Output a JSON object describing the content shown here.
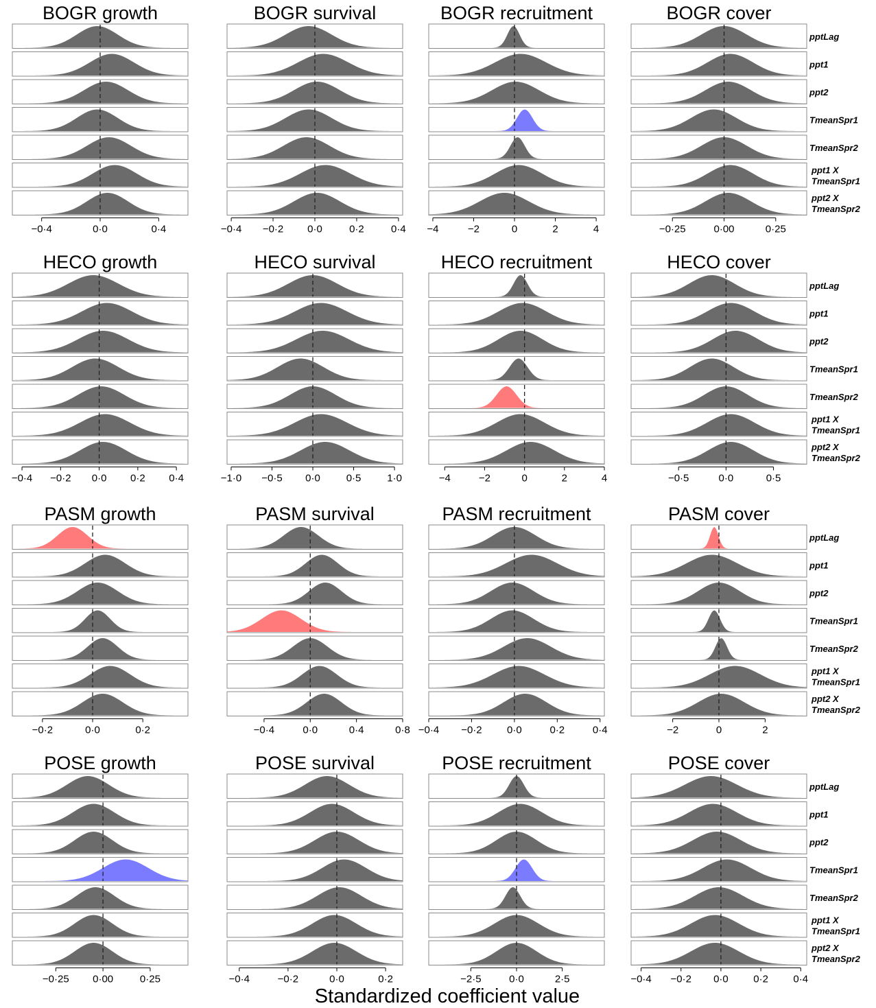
{
  "figure": {
    "xlabel": "Standardized coefficient value",
    "parameters": [
      [
        "pptLag"
      ],
      [
        "ppt1"
      ],
      [
        "ppt2"
      ],
      [
        "TmeanSpr1"
      ],
      [
        "TmeanSpr2"
      ],
      [
        "ppt1 X",
        "TmeanSpr1"
      ],
      [
        "ppt2 X",
        "TmeanSpr2"
      ]
    ],
    "colors": {
      "neutral": "#6b6b6b",
      "negative": "#ff7b7b",
      "positive": "#7b7bff"
    }
  },
  "chart_data": [
    {
      "type": "area",
      "title": "BOGR growth",
      "xlim": [
        -0.6,
        0.6
      ],
      "ticks": [
        -0.4,
        0,
        0.4
      ],
      "tick_labels": [
        "−0·4",
        "0·0",
        "0·4"
      ],
      "series": [
        {
          "mean": -0.02,
          "sd": 0.14,
          "color": "neutral"
        },
        {
          "mean": 0.08,
          "sd": 0.15,
          "color": "neutral"
        },
        {
          "mean": 0.04,
          "sd": 0.15,
          "color": "neutral"
        },
        {
          "mean": -0.02,
          "sd": 0.14,
          "color": "neutral"
        },
        {
          "mean": 0.06,
          "sd": 0.15,
          "color": "neutral"
        },
        {
          "mean": 0.1,
          "sd": 0.15,
          "color": "neutral"
        },
        {
          "mean": 0.05,
          "sd": 0.14,
          "color": "neutral"
        }
      ]
    },
    {
      "type": "area",
      "title": "BOGR survival",
      "xlim": [
        -0.42,
        0.42
      ],
      "ticks": [
        -0.4,
        -0.2,
        0,
        0.2,
        0.4
      ],
      "tick_labels": [
        "−0·4",
        "−0·2",
        "0·0",
        "0·2",
        "0·4"
      ],
      "series": [
        {
          "mean": -0.03,
          "sd": 0.11,
          "color": "neutral"
        },
        {
          "mean": 0.04,
          "sd": 0.12,
          "color": "neutral"
        },
        {
          "mean": 0.01,
          "sd": 0.11,
          "color": "neutral"
        },
        {
          "mean": -0.03,
          "sd": 0.11,
          "color": "neutral"
        },
        {
          "mean": -0.04,
          "sd": 0.11,
          "color": "neutral"
        },
        {
          "mean": 0.05,
          "sd": 0.12,
          "color": "neutral"
        },
        {
          "mean": 0.01,
          "sd": 0.11,
          "color": "neutral"
        }
      ]
    },
    {
      "type": "area",
      "title": "BOGR recruitment",
      "xlim": [
        -4.2,
        4.4
      ],
      "ticks": [
        -4,
        -2,
        0,
        2,
        4
      ],
      "tick_labels": [
        "−4",
        "−2",
        "0",
        "2",
        "4"
      ],
      "series": [
        {
          "mean": -0.05,
          "sd": 0.3,
          "color": "neutral"
        },
        {
          "mean": 0.3,
          "sd": 1.25,
          "color": "neutral"
        },
        {
          "mean": 0.05,
          "sd": 1.15,
          "color": "neutral"
        },
        {
          "mean": 0.5,
          "sd": 0.38,
          "color": "positive"
        },
        {
          "mean": 0.15,
          "sd": 0.35,
          "color": "neutral"
        },
        {
          "mean": 0.2,
          "sd": 1.15,
          "color": "neutral"
        },
        {
          "mean": -0.5,
          "sd": 1.2,
          "color": "neutral"
        }
      ]
    },
    {
      "type": "area",
      "title": "BOGR cover",
      "xlim": [
        -0.45,
        0.4
      ],
      "ticks": [
        -0.25,
        0,
        0.25
      ],
      "tick_labels": [
        "−0·25",
        "0·00",
        "0·25"
      ],
      "series": [
        {
          "mean": 0.0,
          "sd": 0.11,
          "color": "neutral"
        },
        {
          "mean": 0.03,
          "sd": 0.11,
          "color": "neutral"
        },
        {
          "mean": 0.02,
          "sd": 0.11,
          "color": "neutral"
        },
        {
          "mean": -0.05,
          "sd": 0.11,
          "color": "neutral"
        },
        {
          "mean": 0.0,
          "sd": 0.11,
          "color": "neutral"
        },
        {
          "mean": 0.03,
          "sd": 0.11,
          "color": "neutral"
        },
        {
          "mean": 0.02,
          "sd": 0.11,
          "color": "neutral"
        }
      ]
    },
    {
      "type": "area",
      "title": "HECO growth",
      "xlim": [
        -0.45,
        0.46
      ],
      "ticks": [
        -0.4,
        -0.2,
        0,
        0.2,
        0.4
      ],
      "tick_labels": [
        "−0·4",
        "−0·2",
        "0·0",
        "0·2",
        "0·4"
      ],
      "series": [
        {
          "mean": -0.03,
          "sd": 0.13,
          "color": "neutral"
        },
        {
          "mean": 0.04,
          "sd": 0.13,
          "color": "neutral"
        },
        {
          "mean": 0.02,
          "sd": 0.13,
          "color": "neutral"
        },
        {
          "mean": -0.02,
          "sd": 0.12,
          "color": "neutral"
        },
        {
          "mean": 0.01,
          "sd": 0.12,
          "color": "neutral"
        },
        {
          "mean": 0.03,
          "sd": 0.13,
          "color": "neutral"
        },
        {
          "mean": 0.02,
          "sd": 0.12,
          "color": "neutral"
        }
      ]
    },
    {
      "type": "area",
      "title": "HECO survival",
      "xlim": [
        -1.05,
        1.1
      ],
      "ticks": [
        -1,
        -0.5,
        0,
        0.5,
        1
      ],
      "tick_labels": [
        "−1·0",
        "−0·5",
        "0·0",
        "0·5",
        "1·0"
      ],
      "series": [
        {
          "mean": 0.0,
          "sd": 0.3,
          "color": "neutral"
        },
        {
          "mean": 0.1,
          "sd": 0.32,
          "color": "neutral"
        },
        {
          "mean": 0.12,
          "sd": 0.32,
          "color": "neutral"
        },
        {
          "mean": -0.15,
          "sd": 0.28,
          "color": "neutral"
        },
        {
          "mean": 0.0,
          "sd": 0.28,
          "color": "neutral"
        },
        {
          "mean": 0.1,
          "sd": 0.32,
          "color": "neutral"
        },
        {
          "mean": 0.15,
          "sd": 0.3,
          "color": "neutral"
        }
      ]
    },
    {
      "type": "area",
      "title": "HECO recruitment",
      "xlim": [
        -4.8,
        4.0
      ],
      "ticks": [
        -4,
        -2,
        0,
        2,
        4
      ],
      "tick_labels": [
        "−4",
        "−2",
        "0",
        "2",
        "4"
      ],
      "series": [
        {
          "mean": -0.2,
          "sd": 0.35,
          "color": "neutral"
        },
        {
          "mean": -0.1,
          "sd": 1.2,
          "color": "neutral"
        },
        {
          "mean": -0.2,
          "sd": 1.1,
          "color": "neutral"
        },
        {
          "mean": -0.3,
          "sd": 0.45,
          "color": "neutral"
        },
        {
          "mean": -0.9,
          "sd": 0.5,
          "color": "negative"
        },
        {
          "mean": -0.2,
          "sd": 1.2,
          "color": "neutral"
        },
        {
          "mean": 0.3,
          "sd": 1.2,
          "color": "neutral"
        }
      ]
    },
    {
      "type": "area",
      "title": "HECO cover",
      "xlim": [
        -1.0,
        0.85
      ],
      "ticks": [
        -0.5,
        0,
        0.5
      ],
      "tick_labels": [
        "−0·5",
        "0·0",
        "0·5"
      ],
      "series": [
        {
          "mean": -0.15,
          "sd": 0.24,
          "color": "neutral"
        },
        {
          "mean": 0.05,
          "sd": 0.25,
          "color": "neutral"
        },
        {
          "mean": 0.1,
          "sd": 0.24,
          "color": "neutral"
        },
        {
          "mean": -0.15,
          "sd": 0.23,
          "color": "neutral"
        },
        {
          "mean": 0.0,
          "sd": 0.23,
          "color": "neutral"
        },
        {
          "mean": 0.05,
          "sd": 0.25,
          "color": "neutral"
        },
        {
          "mean": 0.05,
          "sd": 0.24,
          "color": "neutral"
        }
      ]
    },
    {
      "type": "area",
      "title": "PASM growth",
      "xlim": [
        -0.32,
        0.38
      ],
      "ticks": [
        -0.2,
        0,
        0.2
      ],
      "tick_labels": [
        "−0·2",
        "0·0",
        "0·2"
      ],
      "series": [
        {
          "mean": -0.08,
          "sd": 0.06,
          "color": "negative"
        },
        {
          "mean": 0.05,
          "sd": 0.08,
          "color": "neutral"
        },
        {
          "mean": 0.02,
          "sd": 0.08,
          "color": "neutral"
        },
        {
          "mean": 0.02,
          "sd": 0.05,
          "color": "neutral"
        },
        {
          "mean": 0.04,
          "sd": 0.06,
          "color": "neutral"
        },
        {
          "mean": 0.07,
          "sd": 0.08,
          "color": "neutral"
        },
        {
          "mean": 0.04,
          "sd": 0.08,
          "color": "neutral"
        }
      ]
    },
    {
      "type": "area",
      "title": "PASM survival",
      "xlim": [
        -0.72,
        0.8
      ],
      "ticks": [
        -0.4,
        0,
        0.4,
        0.8
      ],
      "tick_labels": [
        "−0·4",
        "0·0",
        "0·4",
        "0·8"
      ],
      "series": [
        {
          "mean": -0.08,
          "sd": 0.15,
          "color": "neutral"
        },
        {
          "mean": 0.1,
          "sd": 0.14,
          "color": "neutral"
        },
        {
          "mean": 0.13,
          "sd": 0.14,
          "color": "neutral"
        },
        {
          "mean": -0.25,
          "sd": 0.17,
          "color": "negative"
        },
        {
          "mean": 0.0,
          "sd": 0.15,
          "color": "neutral"
        },
        {
          "mean": 0.08,
          "sd": 0.15,
          "color": "neutral"
        },
        {
          "mean": 0.12,
          "sd": 0.15,
          "color": "neutral"
        }
      ]
    },
    {
      "type": "area",
      "title": "PASM recruitment",
      "xlim": [
        -0.4,
        0.42
      ],
      "ticks": [
        -0.4,
        -0.2,
        0,
        0.2,
        0.4
      ],
      "tick_labels": [
        "−0·4",
        "−0·2",
        "0·0",
        "0·2",
        "0·4"
      ],
      "series": [
        {
          "mean": 0.0,
          "sd": 0.1,
          "color": "neutral"
        },
        {
          "mean": 0.08,
          "sd": 0.12,
          "color": "neutral"
        },
        {
          "mean": -0.01,
          "sd": 0.1,
          "color": "neutral"
        },
        {
          "mean": -0.01,
          "sd": 0.1,
          "color": "neutral"
        },
        {
          "mean": 0.06,
          "sd": 0.11,
          "color": "neutral"
        },
        {
          "mean": 0.02,
          "sd": 0.12,
          "color": "neutral"
        },
        {
          "mean": 0.05,
          "sd": 0.1,
          "color": "neutral"
        }
      ]
    },
    {
      "type": "area",
      "title": "PASM cover",
      "xlim": [
        -3.8,
        3.8
      ],
      "ticks": [
        -2,
        0,
        2
      ],
      "tick_labels": [
        "−2",
        "0",
        "2"
      ],
      "series": [
        {
          "mean": -0.2,
          "sd": 0.18,
          "color": "negative"
        },
        {
          "mean": -0.3,
          "sd": 1.1,
          "color": "neutral"
        },
        {
          "mean": 0.0,
          "sd": 0.9,
          "color": "neutral"
        },
        {
          "mean": -0.2,
          "sd": 0.25,
          "color": "neutral"
        },
        {
          "mean": 0.1,
          "sd": 0.25,
          "color": "neutral"
        },
        {
          "mean": 0.7,
          "sd": 1.1,
          "color": "neutral"
        },
        {
          "mean": 0.1,
          "sd": 1.0,
          "color": "neutral"
        }
      ]
    },
    {
      "type": "area",
      "title": "POSE growth",
      "xlim": [
        -0.48,
        0.45
      ],
      "ticks": [
        -0.25,
        0,
        0.25
      ],
      "tick_labels": [
        "−0·25",
        "0·00",
        "0·25"
      ],
      "series": [
        {
          "mean": -0.08,
          "sd": 0.11,
          "color": "neutral"
        },
        {
          "mean": -0.05,
          "sd": 0.11,
          "color": "neutral"
        },
        {
          "mean": -0.05,
          "sd": 0.1,
          "color": "neutral"
        },
        {
          "mean": 0.12,
          "sd": 0.12,
          "color": "positive"
        },
        {
          "mean": -0.04,
          "sd": 0.1,
          "color": "neutral"
        },
        {
          "mean": -0.05,
          "sd": 0.1,
          "color": "neutral"
        },
        {
          "mean": -0.05,
          "sd": 0.1,
          "color": "neutral"
        }
      ]
    },
    {
      "type": "area",
      "title": "POSE survival",
      "xlim": [
        -0.45,
        0.27
      ],
      "ticks": [
        -0.4,
        -0.2,
        0,
        0.2
      ],
      "tick_labels": [
        "−0·4",
        "−0·2",
        "0·0",
        "0·2"
      ],
      "series": [
        {
          "mean": -0.04,
          "sd": 0.09,
          "color": "neutral"
        },
        {
          "mean": -0.02,
          "sd": 0.09,
          "color": "neutral"
        },
        {
          "mean": 0.0,
          "sd": 0.09,
          "color": "neutral"
        },
        {
          "mean": 0.03,
          "sd": 0.09,
          "color": "neutral"
        },
        {
          "mean": 0.01,
          "sd": 0.09,
          "color": "neutral"
        },
        {
          "mean": -0.01,
          "sd": 0.09,
          "color": "neutral"
        },
        {
          "mean": -0.01,
          "sd": 0.09,
          "color": "neutral"
        }
      ]
    },
    {
      "type": "area",
      "title": "POSE recruitment",
      "xlim": [
        -4.8,
        4.8
      ],
      "ticks": [
        -2.5,
        0,
        2.5
      ],
      "tick_labels": [
        "−2·5",
        "0·0",
        "2·5"
      ],
      "series": [
        {
          "mean": 0.0,
          "sd": 0.4,
          "color": "neutral"
        },
        {
          "mean": 0.2,
          "sd": 1.2,
          "color": "neutral"
        },
        {
          "mean": 0.0,
          "sd": 1.1,
          "color": "neutral"
        },
        {
          "mean": 0.4,
          "sd": 0.45,
          "color": "positive"
        },
        {
          "mean": -0.2,
          "sd": 0.4,
          "color": "neutral"
        },
        {
          "mean": 0.0,
          "sd": 1.2,
          "color": "neutral"
        },
        {
          "mean": 0.0,
          "sd": 1.1,
          "color": "neutral"
        }
      ]
    },
    {
      "type": "area",
      "title": "POSE cover",
      "xlim": [
        -0.45,
        0.43
      ],
      "ticks": [
        -0.4,
        -0.2,
        0,
        0.2,
        0.4
      ],
      "tick_labels": [
        "−0·4",
        "−0·2",
        "0·0",
        "0·2",
        "0·4"
      ],
      "series": [
        {
          "mean": -0.05,
          "sd": 0.13,
          "color": "neutral"
        },
        {
          "mean": -0.04,
          "sd": 0.12,
          "color": "neutral"
        },
        {
          "mean": -0.02,
          "sd": 0.12,
          "color": "neutral"
        },
        {
          "mean": 0.03,
          "sd": 0.12,
          "color": "neutral"
        },
        {
          "mean": -0.01,
          "sd": 0.12,
          "color": "neutral"
        },
        {
          "mean": -0.03,
          "sd": 0.12,
          "color": "neutral"
        },
        {
          "mean": -0.03,
          "sd": 0.12,
          "color": "neutral"
        }
      ]
    }
  ]
}
